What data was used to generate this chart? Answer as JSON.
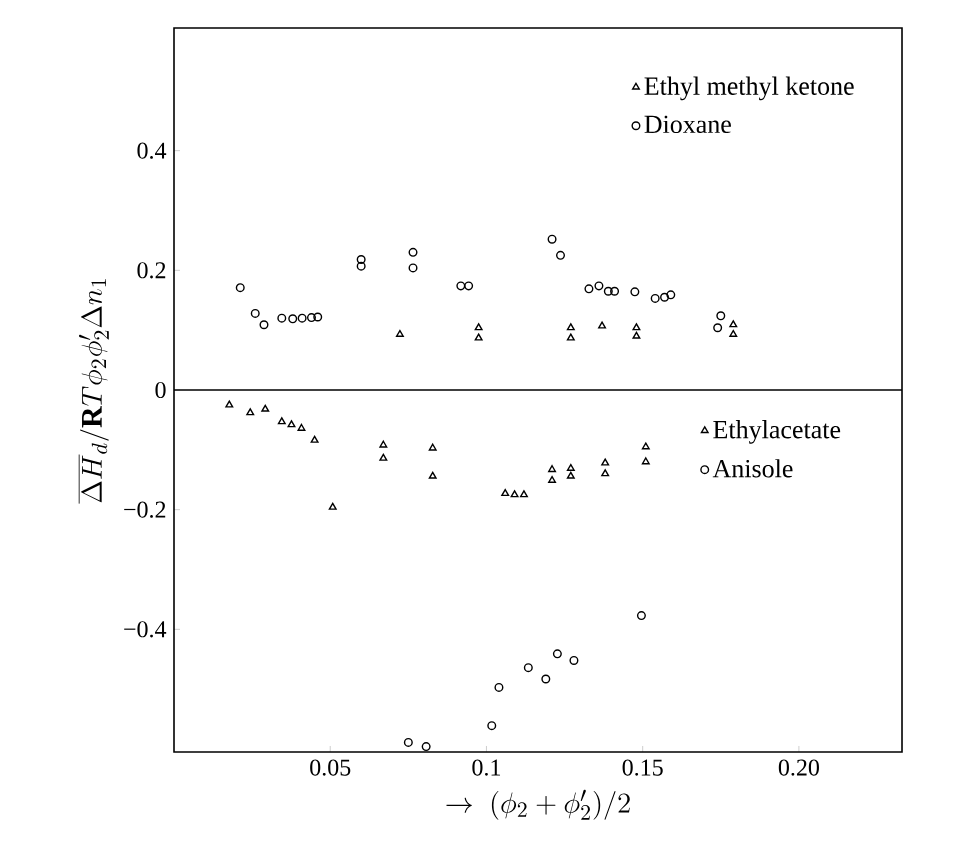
{
  "chart_data": {
    "type": "scatter",
    "xlabel": "\\rightarrow\\ (\\phi_2+\\phi_2')/2",
    "ylabel": "\\overline{\\Delta H}_d/\\mathbf{R}T\\phi_2\\phi_2'\\Delta n_1",
    "xlim": [
      0,
      0.233
    ],
    "ylim": [
      -0.605,
      0.605
    ],
    "xticks": [
      0.05,
      0.1,
      0.15,
      {
        "value": 0.2,
        "label": "0.20"
      }
    ],
    "yticks": [
      {
        "value": -0.4,
        "label": "−0.4"
      },
      {
        "value": -0.2,
        "label": "−0.2"
      },
      0,
      0.2,
      0.4
    ],
    "grid": false,
    "legend": "right",
    "ref_lines": [
      {
        "axis": "y",
        "value": 0,
        "color": "#000000"
      }
    ],
    "series": [
      {
        "name": "Ethyl methyl ketone",
        "color": "#000000",
        "marker": "triangle",
        "x": [
          0.0723,
          0.0975,
          0.0975,
          0.127,
          0.127,
          0.137,
          0.148,
          0.148,
          0.179,
          0.179
        ],
        "values": [
          0.093,
          0.104,
          0.087,
          0.104,
          0.087,
          0.107,
          0.104,
          0.09,
          0.109,
          0.093
        ]
      },
      {
        "name": "Dioxane",
        "color": "#000000",
        "marker": "circle",
        "x": [
          0.0212,
          0.026,
          0.0288,
          0.0345,
          0.038,
          0.041,
          0.044,
          0.046,
          0.0599,
          0.0599,
          0.0765,
          0.0765,
          0.0918,
          0.0943,
          0.121,
          0.1237,
          0.1328,
          0.136,
          0.139,
          0.141,
          0.1475,
          0.154,
          0.157,
          0.159,
          0.175,
          0.174
        ],
        "values": [
          0.171,
          0.128,
          0.109,
          0.12,
          0.119,
          0.12,
          0.121,
          0.122,
          0.218,
          0.207,
          0.23,
          0.204,
          0.174,
          0.174,
          0.252,
          0.225,
          0.169,
          0.174,
          0.165,
          0.165,
          0.164,
          0.153,
          0.155,
          0.159,
          0.124,
          0.104
        ]
      },
      {
        "name": "Ethylacetate",
        "color": "#000000",
        "marker": "triangle",
        "x": [
          0.0177,
          0.0244,
          0.0292,
          0.0345,
          0.0376,
          0.0408,
          0.045,
          0.0508,
          0.067,
          0.067,
          0.0828,
          0.0828,
          0.106,
          0.109,
          0.112,
          0.121,
          0.121,
          0.127,
          0.127,
          0.138,
          0.138,
          0.151,
          0.151
        ],
        "values": [
          -0.025,
          -0.038,
          -0.032,
          -0.053,
          -0.058,
          -0.064,
          -0.084,
          -0.196,
          -0.092,
          -0.114,
          -0.097,
          -0.144,
          -0.173,
          -0.175,
          -0.175,
          -0.133,
          -0.151,
          -0.131,
          -0.144,
          -0.122,
          -0.14,
          -0.095,
          -0.12
        ]
      },
      {
        "name": "Anisole",
        "color": "#000000",
        "marker": "circle",
        "x": [
          0.1496,
          0.128,
          0.1227,
          0.119,
          0.1134,
          0.104,
          0.1017,
          0.075,
          0.0807
        ],
        "values": [
          -0.377,
          -0.452,
          -0.441,
          -0.483,
          -0.464,
          -0.497,
          -0.561,
          -0.589,
          -0.596
        ]
      }
    ]
  }
}
